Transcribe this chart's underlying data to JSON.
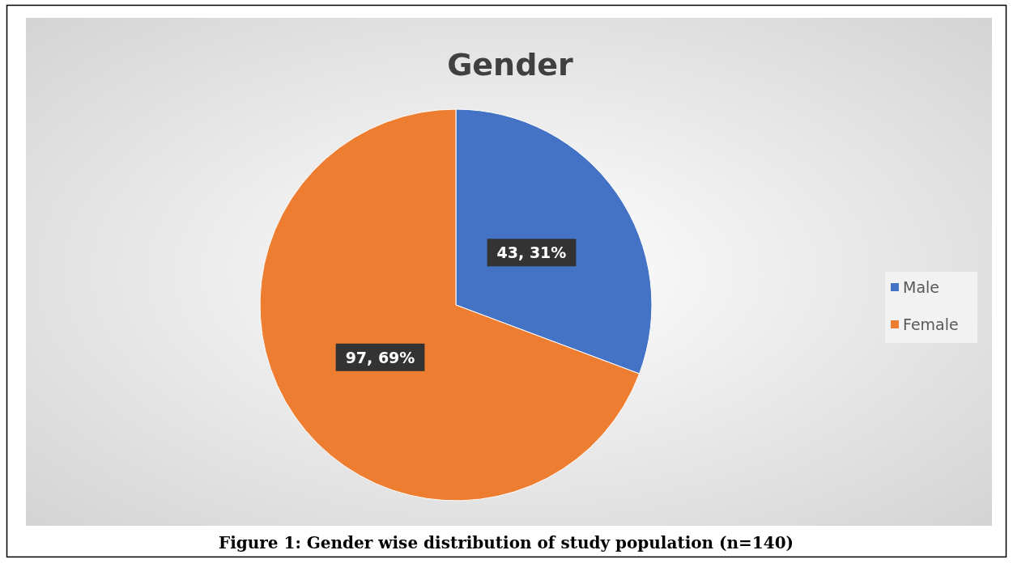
{
  "chart_data": {
    "type": "pie",
    "title": "Gender",
    "categories": [
      "Male",
      "Female"
    ],
    "values": [
      43,
      97
    ],
    "colors": [
      "#4472c4",
      "#ed7d31"
    ],
    "value_labels": [
      "43, 31%",
      "97, 69%"
    ],
    "legend": "right",
    "annotations": [
      "Figure 1: Gender wise distribution of study population (n=140)"
    ]
  }
}
